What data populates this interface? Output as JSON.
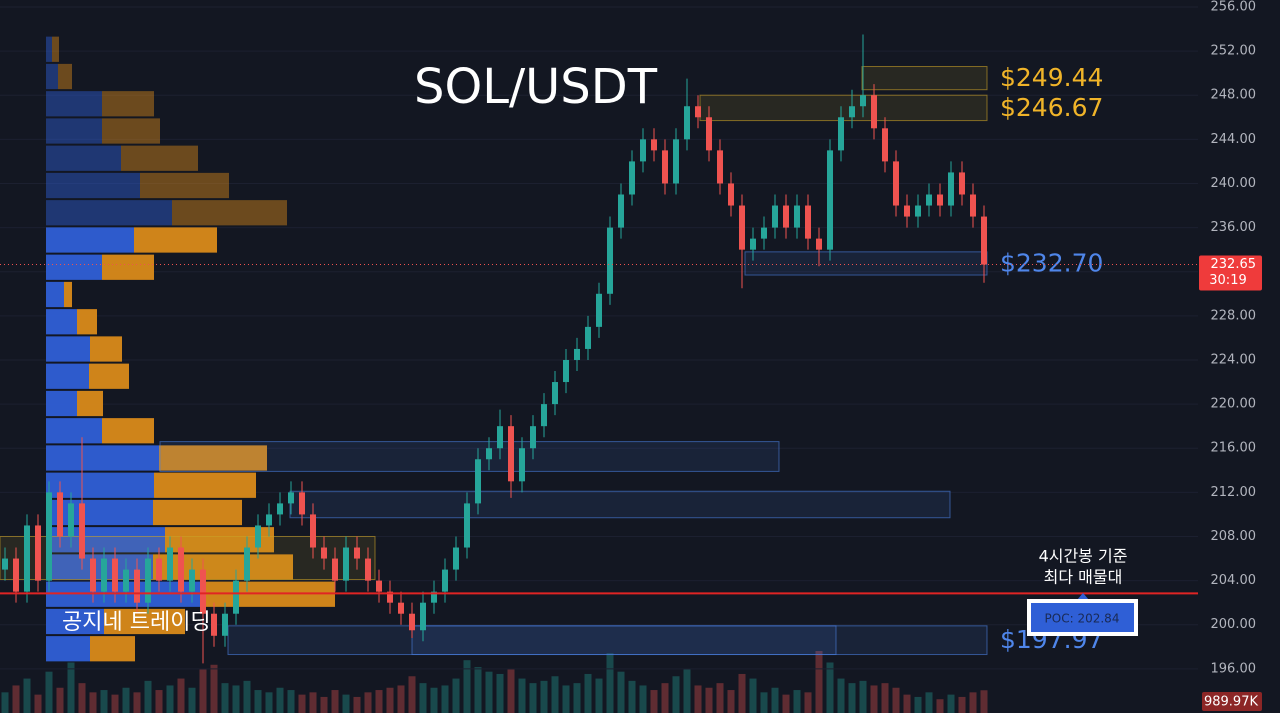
{
  "chart_data": {
    "type": "candlestick",
    "title": "SOL/USDT",
    "watermark": "공지네 트레이딩",
    "ylim": [
      192,
      256.63
    ],
    "yticks": [
      {
        "value": 196,
        "label": "196.00"
      },
      {
        "value": 200,
        "label": "200.00"
      },
      {
        "value": 204,
        "label": "204.00"
      },
      {
        "value": 208,
        "label": "208.00"
      },
      {
        "value": 212,
        "label": "212.00"
      },
      {
        "value": 216,
        "label": "216.00"
      },
      {
        "value": 220,
        "label": "220.00"
      },
      {
        "value": 224,
        "label": "224.00"
      },
      {
        "value": 228,
        "label": "228.00"
      },
      {
        "value": 232,
        "label": "232.00"
      },
      {
        "value": 236,
        "label": "236.00"
      },
      {
        "value": 240,
        "label": "240.00"
      },
      {
        "value": 244,
        "label": "244.00"
      },
      {
        "value": 248,
        "label": "248.00"
      },
      {
        "value": 252,
        "label": "252.00"
      },
      {
        "value": 256,
        "label": "256.00"
      }
    ],
    "grid": true,
    "up_color": "#26a69a",
    "down_color": "#ef5350",
    "open": [
      205,
      206,
      203,
      209,
      204,
      212,
      208,
      211,
      206,
      203,
      206,
      203,
      205,
      202,
      206,
      204,
      207,
      203,
      205,
      201,
      199,
      201,
      204,
      207,
      209,
      210,
      211,
      212,
      210,
      207,
      206,
      204,
      207,
      206,
      204,
      203,
      202,
      201,
      199.5,
      202,
      203,
      205,
      207,
      211,
      215,
      216,
      218,
      213,
      216,
      218,
      220,
      222,
      224,
      225,
      227,
      230,
      236,
      239,
      242,
      244,
      243,
      240,
      244,
      247,
      246,
      243,
      240,
      238,
      234,
      235,
      236,
      238,
      236,
      238,
      235,
      234,
      243,
      246,
      247,
      248,
      245,
      242,
      238,
      237,
      238,
      239,
      238,
      241,
      239,
      237
    ],
    "high": [
      207,
      207,
      210,
      210,
      213,
      213,
      212,
      217,
      207,
      207,
      207,
      206,
      206,
      207,
      207,
      208,
      208,
      206,
      206,
      202,
      202,
      205,
      208,
      210,
      211,
      212,
      213,
      213,
      211,
      208,
      207,
      208,
      208,
      207,
      205,
      204,
      203,
      202,
      203,
      204,
      206,
      208,
      212,
      216,
      217,
      219.5,
      219,
      217,
      219,
      221,
      223,
      225,
      226,
      228,
      231,
      237,
      240,
      243,
      245,
      245,
      244,
      245,
      249.5,
      248,
      247,
      244,
      241,
      239,
      236,
      237,
      239,
      239,
      239,
      239,
      236,
      244,
      247,
      248.5,
      253.5,
      249,
      246,
      243,
      239,
      239,
      240,
      240,
      242,
      242,
      240,
      238
    ],
    "low": [
      204,
      202,
      202,
      203,
      203,
      207,
      207,
      205,
      202,
      202,
      202,
      202,
      201,
      201,
      203,
      203,
      202,
      202,
      196.5,
      198,
      198,
      200,
      203,
      206,
      208,
      209,
      210,
      209,
      206,
      205,
      203,
      203,
      205,
      203,
      202,
      201,
      200,
      198.8,
      198.5,
      201,
      202,
      204,
      206,
      210,
      214,
      215,
      211.5,
      212,
      215,
      217,
      219,
      221,
      223,
      224,
      226,
      229,
      235,
      238,
      241,
      242,
      239,
      239,
      243,
      245,
      242,
      239,
      237,
      230.5,
      233,
      234,
      235,
      235,
      235,
      234,
      232.5,
      233,
      242,
      245,
      246,
      244,
      241,
      237,
      236,
      236,
      237,
      237,
      237,
      238,
      236,
      231
    ],
    "close": [
      206,
      203,
      209,
      204,
      212,
      208,
      211,
      206,
      203,
      206,
      203,
      205,
      202,
      206,
      204,
      207,
      203,
      205,
      201,
      199,
      201,
      204,
      207,
      209,
      210,
      211,
      212,
      210,
      207,
      206,
      204,
      207,
      206,
      204,
      203,
      202,
      201,
      199.5,
      202,
      203,
      205,
      207,
      211,
      215,
      216,
      218,
      213,
      216,
      218,
      220,
      222,
      224,
      225,
      227,
      230,
      236,
      239,
      242,
      244,
      243,
      240,
      244,
      247,
      246,
      243,
      240,
      238,
      234,
      235,
      236,
      238,
      236,
      238,
      235,
      234,
      243,
      246,
      247,
      248,
      245,
      242,
      238,
      237,
      238,
      239,
      238,
      241,
      239,
      237,
      232.65
    ],
    "volume": {
      "values": [
        900,
        1200,
        1500,
        800,
        1800,
        1100,
        2200,
        1300,
        900,
        1000,
        800,
        1100,
        900,
        1400,
        1000,
        1200,
        1500,
        1100,
        1900,
        2100,
        1300,
        1200,
        1400,
        1000,
        900,
        1100,
        1000,
        800,
        900,
        700,
        1000,
        800,
        700,
        900,
        1000,
        1100,
        1200,
        1600,
        1300,
        1100,
        1200,
        1500,
        2300,
        2000,
        1800,
        1700,
        1900,
        1500,
        1300,
        1400,
        1600,
        1200,
        1300,
        1700,
        1500,
        2600,
        1800,
        1400,
        1200,
        1000,
        1300,
        1600,
        1900,
        1200,
        1100,
        1300,
        1000,
        1700,
        1500,
        900,
        1100,
        800,
        1000,
        900,
        2700,
        2200,
        1500,
        1300,
        1400,
        1200,
        1300,
        1100,
        800,
        700,
        900,
        600,
        800,
        700,
        900,
        989.97
      ],
      "value_labels": [
        null,
        null,
        null,
        null,
        null,
        null,
        null,
        null,
        null,
        null,
        null,
        null,
        null,
        null,
        null,
        null,
        null,
        null,
        null,
        null,
        null,
        null,
        null,
        null,
        null,
        null,
        null,
        null,
        null,
        null,
        null,
        null,
        null,
        null,
        null,
        null,
        null,
        null,
        null,
        null,
        null,
        null,
        null,
        null,
        null,
        null,
        null,
        null,
        null,
        null,
        null,
        null,
        null,
        null,
        null,
        null,
        null,
        null,
        null,
        null,
        null,
        null,
        null,
        null,
        null,
        null,
        null,
        null,
        null,
        null,
        null,
        null,
        null,
        null,
        null,
        null,
        null,
        null,
        null,
        null,
        null,
        null,
        null,
        null,
        null,
        null,
        null,
        null,
        null,
        "989.97K"
      ]
    },
    "profile": {
      "bins": [
        253.4,
        250.93,
        248.46,
        245.99,
        243.52,
        241.05,
        238.58,
        236.11,
        233.64,
        231.17,
        228.7,
        226.23,
        223.76,
        221.29,
        218.82,
        216.35,
        213.88,
        211.41,
        208.94,
        206.47,
        204.0,
        201.53,
        199.06,
        196.59
      ],
      "buy": [
        6,
        12,
        56,
        56,
        75,
        94,
        126,
        88,
        56,
        18,
        31,
        44,
        43,
        31,
        56,
        113,
        108,
        107,
        119,
        107,
        159,
        58,
        44
      ],
      "sell": [
        7,
        14,
        52,
        58,
        77,
        89,
        115,
        83,
        52,
        8,
        20,
        32,
        40,
        26,
        52,
        108,
        102,
        89,
        109,
        140,
        130,
        81,
        45
      ],
      "buy_color": "#2f5fd6",
      "sell_color": "#d98a1a",
      "value_area": [
        196.59,
        236.11
      ]
    },
    "zones": [
      {
        "low": 248.5,
        "high": 250.6,
        "color": "#c9a227",
        "label": "$249.44"
      },
      {
        "low": 245.7,
        "high": 248.0,
        "color": "#c9a227",
        "label": "$246.67"
      },
      {
        "low": 231.7,
        "high": 233.8,
        "color": "#4a7fe0",
        "label": "$232.70"
      },
      {
        "low": 197.3,
        "high": 199.9,
        "color": "#4a7fe0",
        "label": "$197.97"
      },
      {
        "low": 213.9,
        "high": 216.6,
        "color": "#4a7fe0"
      },
      {
        "low": 209.7,
        "high": 212.1,
        "color": "#4a7fe0"
      },
      {
        "low": 204.1,
        "high": 208.0,
        "color": "#c9a227"
      },
      {
        "low": 197.3,
        "high": 199.9,
        "color": "#4a7fe0"
      }
    ],
    "last_price": {
      "value": 232.65,
      "label": "232.65"
    },
    "countdown": "30:19",
    "poc": {
      "value": 202.84,
      "label": "POC: 202.84"
    },
    "annotation": [
      "4시간봉 기준",
      "최다 매물대"
    ]
  }
}
